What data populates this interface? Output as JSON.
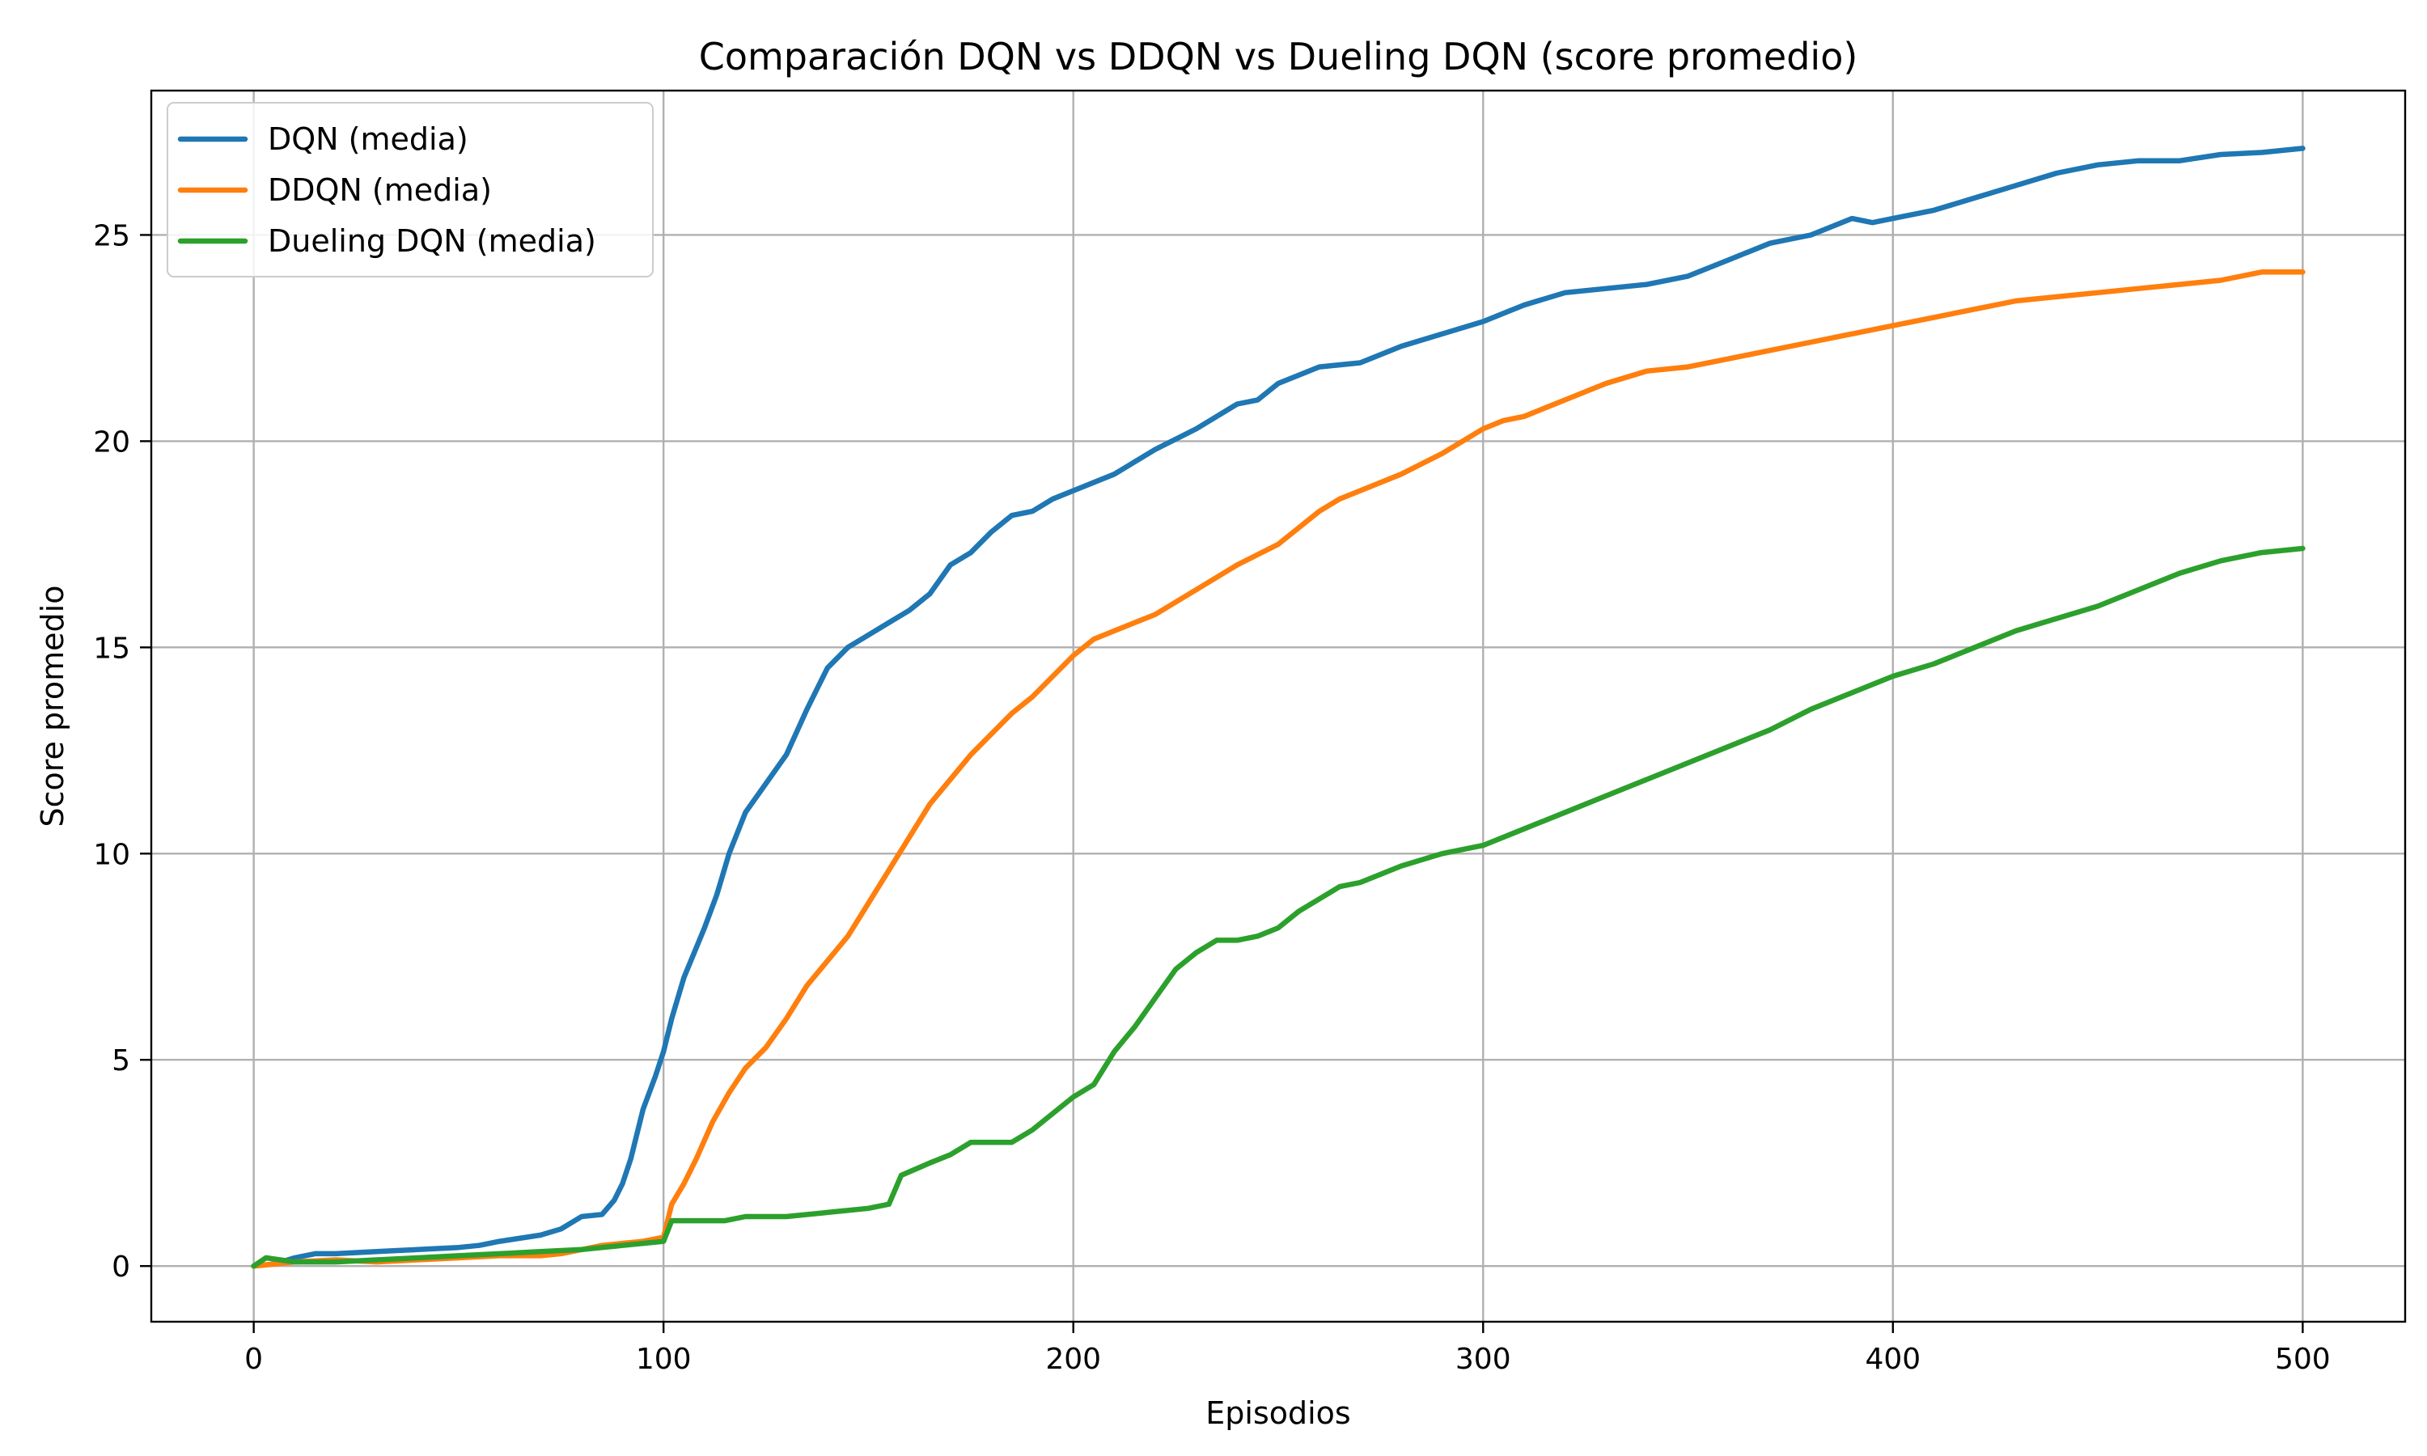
{
  "chart_data": {
    "type": "line",
    "title": "Comparación DQN vs DDQN vs Dueling DQN (score promedio)",
    "xlabel": "Episodios",
    "ylabel": "Score promedio",
    "xlim": [
      -25,
      525
    ],
    "ylim": [
      -1.35,
      28.5
    ],
    "xticks": [
      0,
      100,
      200,
      300,
      400,
      500
    ],
    "yticks": [
      0,
      5,
      10,
      15,
      20,
      25
    ],
    "grid": true,
    "legend_position": "top-left",
    "series": [
      {
        "name": "DQN (media)",
        "color": "#1f77b4",
        "points": [
          [
            0,
            0
          ],
          [
            5,
            0.05
          ],
          [
            10,
            0.2
          ],
          [
            15,
            0.3
          ],
          [
            20,
            0.3
          ],
          [
            30,
            0.35
          ],
          [
            40,
            0.4
          ],
          [
            50,
            0.45
          ],
          [
            55,
            0.5
          ],
          [
            60,
            0.6
          ],
          [
            70,
            0.75
          ],
          [
            75,
            0.9
          ],
          [
            80,
            1.2
          ],
          [
            85,
            1.25
          ],
          [
            88,
            1.6
          ],
          [
            90,
            2.0
          ],
          [
            92,
            2.6
          ],
          [
            95,
            3.8
          ],
          [
            98,
            4.6
          ],
          [
            100,
            5.2
          ],
          [
            102,
            6.0
          ],
          [
            105,
            7.0
          ],
          [
            110,
            8.2
          ],
          [
            113,
            9.0
          ],
          [
            116,
            10.0
          ],
          [
            120,
            11.0
          ],
          [
            125,
            11.7
          ],
          [
            130,
            12.4
          ],
          [
            135,
            13.5
          ],
          [
            140,
            14.5
          ],
          [
            145,
            15.0
          ],
          [
            150,
            15.3
          ],
          [
            155,
            15.6
          ],
          [
            160,
            15.9
          ],
          [
            165,
            16.3
          ],
          [
            170,
            17.0
          ],
          [
            175,
            17.3
          ],
          [
            180,
            17.8
          ],
          [
            185,
            18.2
          ],
          [
            190,
            18.3
          ],
          [
            195,
            18.6
          ],
          [
            200,
            18.8
          ],
          [
            210,
            19.2
          ],
          [
            220,
            19.8
          ],
          [
            230,
            20.3
          ],
          [
            240,
            20.9
          ],
          [
            245,
            21.0
          ],
          [
            250,
            21.4
          ],
          [
            260,
            21.8
          ],
          [
            270,
            21.9
          ],
          [
            280,
            22.3
          ],
          [
            290,
            22.6
          ],
          [
            300,
            22.9
          ],
          [
            310,
            23.3
          ],
          [
            320,
            23.6
          ],
          [
            330,
            23.7
          ],
          [
            340,
            23.8
          ],
          [
            350,
            24.0
          ],
          [
            360,
            24.4
          ],
          [
            370,
            24.8
          ],
          [
            380,
            25.0
          ],
          [
            390,
            25.4
          ],
          [
            395,
            25.3
          ],
          [
            400,
            25.4
          ],
          [
            410,
            25.6
          ],
          [
            420,
            25.9
          ],
          [
            430,
            26.2
          ],
          [
            440,
            26.5
          ],
          [
            450,
            26.7
          ],
          [
            460,
            26.8
          ],
          [
            470,
            26.8
          ],
          [
            480,
            26.95
          ],
          [
            490,
            27.0
          ],
          [
            500,
            27.1
          ]
        ]
      },
      {
        "name": "DDQN (media)",
        "color": "#ff7f0e",
        "points": [
          [
            0,
            0
          ],
          [
            5,
            0.05
          ],
          [
            10,
            0.1
          ],
          [
            20,
            0.15
          ],
          [
            30,
            0.1
          ],
          [
            40,
            0.15
          ],
          [
            50,
            0.2
          ],
          [
            60,
            0.25
          ],
          [
            70,
            0.25
          ],
          [
            75,
            0.3
          ],
          [
            80,
            0.4
          ],
          [
            85,
            0.5
          ],
          [
            90,
            0.55
          ],
          [
            95,
            0.6
          ],
          [
            100,
            0.7
          ],
          [
            102,
            1.5
          ],
          [
            105,
            2.0
          ],
          [
            108,
            2.6
          ],
          [
            112,
            3.5
          ],
          [
            116,
            4.2
          ],
          [
            120,
            4.8
          ],
          [
            125,
            5.3
          ],
          [
            130,
            6.0
          ],
          [
            135,
            6.8
          ],
          [
            140,
            7.4
          ],
          [
            145,
            8.0
          ],
          [
            150,
            8.8
          ],
          [
            155,
            9.6
          ],
          [
            160,
            10.4
          ],
          [
            165,
            11.2
          ],
          [
            170,
            11.8
          ],
          [
            175,
            12.4
          ],
          [
            180,
            12.9
          ],
          [
            185,
            13.4
          ],
          [
            190,
            13.8
          ],
          [
            195,
            14.3
          ],
          [
            200,
            14.8
          ],
          [
            205,
            15.2
          ],
          [
            210,
            15.4
          ],
          [
            220,
            15.8
          ],
          [
            230,
            16.4
          ],
          [
            240,
            17.0
          ],
          [
            250,
            17.5
          ],
          [
            255,
            17.9
          ],
          [
            260,
            18.3
          ],
          [
            265,
            18.6
          ],
          [
            270,
            18.8
          ],
          [
            280,
            19.2
          ],
          [
            290,
            19.7
          ],
          [
            300,
            20.3
          ],
          [
            305,
            20.5
          ],
          [
            310,
            20.6
          ],
          [
            320,
            21.0
          ],
          [
            330,
            21.4
          ],
          [
            340,
            21.7
          ],
          [
            350,
            21.8
          ],
          [
            360,
            22.0
          ],
          [
            370,
            22.2
          ],
          [
            380,
            22.4
          ],
          [
            390,
            22.6
          ],
          [
            400,
            22.8
          ],
          [
            410,
            23.0
          ],
          [
            420,
            23.2
          ],
          [
            430,
            23.4
          ],
          [
            440,
            23.5
          ],
          [
            450,
            23.6
          ],
          [
            460,
            23.7
          ],
          [
            470,
            23.8
          ],
          [
            480,
            23.9
          ],
          [
            490,
            24.1
          ],
          [
            500,
            24.1
          ]
        ]
      },
      {
        "name": "Dueling DQN (media)",
        "color": "#2ca02c",
        "points": [
          [
            0,
            0
          ],
          [
            3,
            0.2
          ],
          [
            10,
            0.1
          ],
          [
            20,
            0.1
          ],
          [
            30,
            0.15
          ],
          [
            40,
            0.2
          ],
          [
            50,
            0.25
          ],
          [
            60,
            0.3
          ],
          [
            70,
            0.35
          ],
          [
            80,
            0.4
          ],
          [
            90,
            0.5
          ],
          [
            100,
            0.6
          ],
          [
            102,
            1.1
          ],
          [
            110,
            1.1
          ],
          [
            115,
            1.1
          ],
          [
            120,
            1.2
          ],
          [
            130,
            1.2
          ],
          [
            140,
            1.3
          ],
          [
            150,
            1.4
          ],
          [
            155,
            1.5
          ],
          [
            158,
            2.2
          ],
          [
            165,
            2.5
          ],
          [
            170,
            2.7
          ],
          [
            175,
            3.0
          ],
          [
            180,
            3.0
          ],
          [
            185,
            3.0
          ],
          [
            190,
            3.3
          ],
          [
            195,
            3.7
          ],
          [
            200,
            4.1
          ],
          [
            205,
            4.4
          ],
          [
            210,
            5.2
          ],
          [
            215,
            5.8
          ],
          [
            220,
            6.5
          ],
          [
            225,
            7.2
          ],
          [
            230,
            7.6
          ],
          [
            235,
            7.9
          ],
          [
            240,
            7.9
          ],
          [
            245,
            8.0
          ],
          [
            250,
            8.2
          ],
          [
            255,
            8.6
          ],
          [
            260,
            8.9
          ],
          [
            265,
            9.2
          ],
          [
            270,
            9.3
          ],
          [
            280,
            9.7
          ],
          [
            290,
            10.0
          ],
          [
            300,
            10.2
          ],
          [
            310,
            10.6
          ],
          [
            320,
            11.0
          ],
          [
            330,
            11.4
          ],
          [
            340,
            11.8
          ],
          [
            350,
            12.2
          ],
          [
            360,
            12.6
          ],
          [
            370,
            13.0
          ],
          [
            380,
            13.5
          ],
          [
            390,
            13.9
          ],
          [
            400,
            14.3
          ],
          [
            410,
            14.6
          ],
          [
            420,
            15.0
          ],
          [
            430,
            15.4
          ],
          [
            440,
            15.7
          ],
          [
            450,
            16.0
          ],
          [
            460,
            16.4
          ],
          [
            470,
            16.8
          ],
          [
            480,
            17.1
          ],
          [
            490,
            17.3
          ],
          [
            500,
            17.4
          ]
        ]
      }
    ]
  }
}
